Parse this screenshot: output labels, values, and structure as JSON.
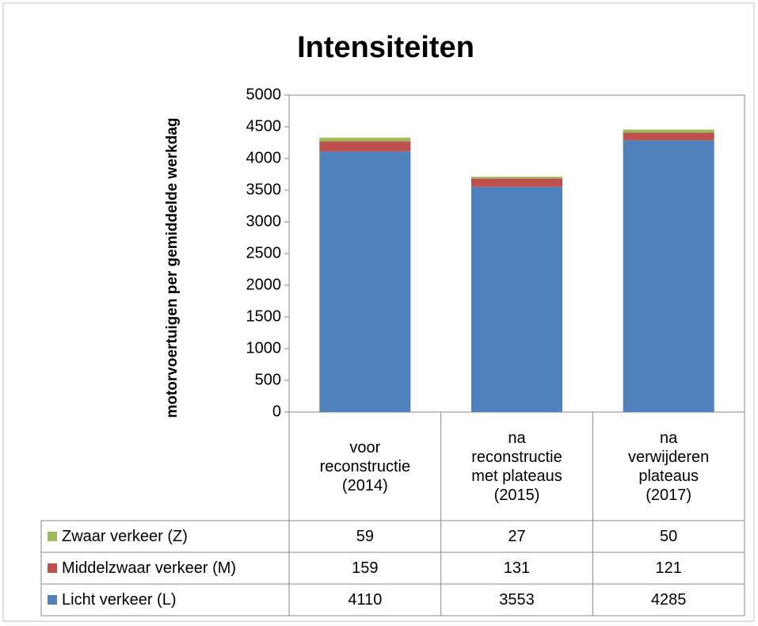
{
  "chart_data": {
    "type": "stacked_bar",
    "title": "Intensiteiten",
    "y_label": "motorvoertuigen per gemiddelde werkdag",
    "categories": [
      "voor reconstructie (2014)",
      "na reconstructie met plateaus (2015)",
      "na verwijderen plateaus (2017)"
    ],
    "series": [
      {
        "name": "Licht verkeer (L)",
        "color": "#4f81bd",
        "values": [
          4110,
          3553,
          4285
        ]
      },
      {
        "name": "Middelzwaar verkeer (M)",
        "color": "#c0504d",
        "values": [
          159,
          131,
          121
        ]
      },
      {
        "name": "Zwaar verkeer (Z)",
        "color": "#9bbb59",
        "values": [
          59,
          27,
          50
        ]
      }
    ],
    "ylim": [
      0,
      5000
    ],
    "yticks": [
      0,
      500,
      1000,
      1500,
      2000,
      2500,
      3000,
      3500,
      4000,
      4500,
      5000
    ],
    "grid": false,
    "data_table": true
  }
}
